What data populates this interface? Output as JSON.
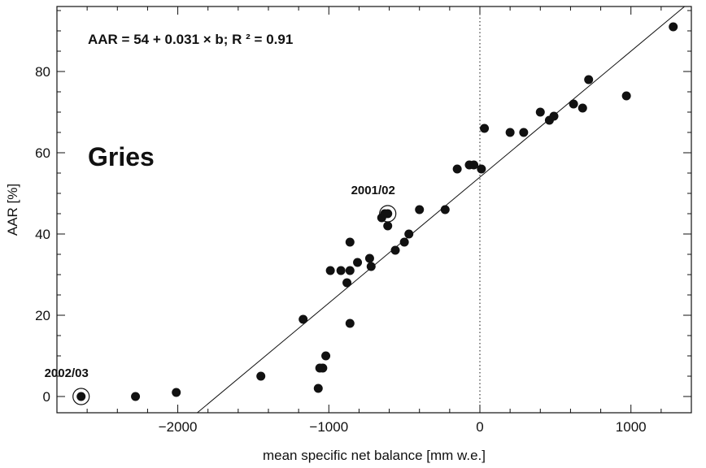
{
  "chart_data": {
    "type": "scatter",
    "title": "",
    "xlabel": "mean specific net balance  [mm w.e.]",
    "ylabel": "AAR  [%]",
    "xlim": [
      -2800,
      1400
    ],
    "ylim": [
      -4,
      96
    ],
    "xticks": [
      -2000,
      -1000,
      0,
      1000
    ],
    "xtick_labels": [
      "−2000",
      "−1000",
      "0",
      "1000"
    ],
    "yticks": [
      0,
      20,
      40,
      60,
      80
    ],
    "ytick_labels": [
      "0",
      "20",
      "40",
      "60",
      "80"
    ],
    "grid": false,
    "legend": "none",
    "panel_label": "Gries",
    "equation_text": "AAR = 54 + 0.031 × b;   R ² = 0.91",
    "regression": {
      "intercept": 54,
      "slope": 0.031,
      "r2": 0.91
    },
    "zero_line_x": 0,
    "annotations": [
      {
        "text": "2002/03",
        "x": -2640,
        "y": 0
      },
      {
        "text": "2001/02",
        "x": -610,
        "y": 45
      }
    ],
    "series": [
      {
        "points": [
          [
            -2640,
            0
          ],
          [
            -2280,
            0
          ],
          [
            -2010,
            1
          ],
          [
            -1450,
            5
          ],
          [
            -1170,
            19
          ],
          [
            -1070,
            2
          ],
          [
            -1060,
            7
          ],
          [
            -1040,
            7
          ],
          [
            -1020,
            10
          ],
          [
            -990,
            31
          ],
          [
            -920,
            31
          ],
          [
            -880,
            28
          ],
          [
            -860,
            31
          ],
          [
            -860,
            38
          ],
          [
            -860,
            18
          ],
          [
            -810,
            33
          ],
          [
            -730,
            34
          ],
          [
            -720,
            32
          ],
          [
            -650,
            44
          ],
          [
            -630,
            45
          ],
          [
            -610,
            45
          ],
          [
            -610,
            42
          ],
          [
            -560,
            36
          ],
          [
            -500,
            38
          ],
          [
            -470,
            40
          ],
          [
            -400,
            46
          ],
          [
            -230,
            46
          ],
          [
            -150,
            56
          ],
          [
            -70,
            57
          ],
          [
            -40,
            57
          ],
          [
            10,
            56
          ],
          [
            30,
            66
          ],
          [
            200,
            65
          ],
          [
            290,
            65
          ],
          [
            400,
            70
          ],
          [
            460,
            68
          ],
          [
            490,
            69
          ],
          [
            620,
            72
          ],
          [
            680,
            71
          ],
          [
            720,
            78
          ],
          [
            970,
            74
          ],
          [
            1280,
            91
          ]
        ]
      }
    ],
    "colors": {
      "points": "#111111",
      "line": "#111111",
      "axis": "#111111"
    }
  }
}
